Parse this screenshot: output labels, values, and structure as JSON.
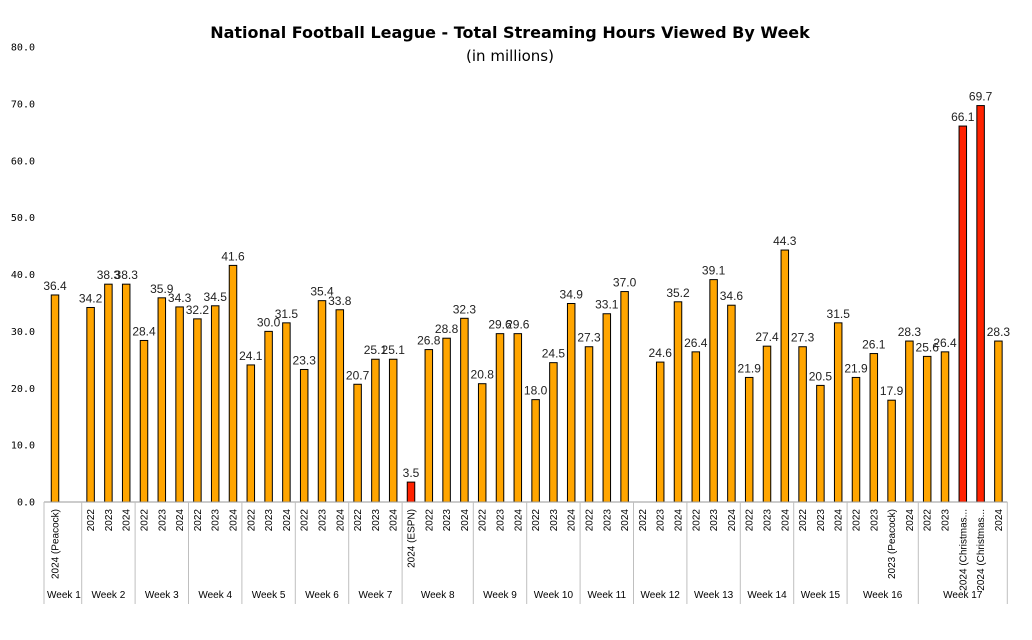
{
  "chart_data": {
    "type": "bar",
    "title": "National Football League - Total Streaming Hours Viewed By Week",
    "subtitle": "(in millions)",
    "ylim": [
      0,
      80
    ],
    "yticks": [
      "0.0",
      "10.0",
      "20.0",
      "30.0",
      "40.0",
      "50.0",
      "60.0",
      "70.0",
      "80.0"
    ],
    "grid": false,
    "colors": {
      "normal": "#FFA500",
      "highlight": "#FF2200",
      "outline": "#000000"
    },
    "groups": [
      {
        "name": "Week 1",
        "bars": [
          {
            "label": "2024 (Peacock)",
            "value": 36.4,
            "value_text": "36.4"
          },
          {
            "label": "",
            "value": null,
            "value_text": ""
          }
        ]
      },
      {
        "name": "Week 2",
        "bars": [
          {
            "label": "2022",
            "value": 34.2,
            "value_text": "34.2"
          },
          {
            "label": "2023",
            "value": 38.3,
            "value_text": "38.3"
          },
          {
            "label": "2024",
            "value": 38.3,
            "value_text": "38.3"
          }
        ]
      },
      {
        "name": "Week 3",
        "bars": [
          {
            "label": "2022",
            "value": 28.4,
            "value_text": "28.4"
          },
          {
            "label": "2023",
            "value": 35.9,
            "value_text": "35.9"
          },
          {
            "label": "2024",
            "value": 34.3,
            "value_text": "34.3"
          }
        ]
      },
      {
        "name": "Week 4",
        "bars": [
          {
            "label": "2022",
            "value": 32.2,
            "value_text": "32.2"
          },
          {
            "label": "2023",
            "value": 34.5,
            "value_text": "34.5"
          },
          {
            "label": "2024",
            "value": 41.6,
            "value_text": "41.6"
          }
        ]
      },
      {
        "name": "Week 5",
        "bars": [
          {
            "label": "2022",
            "value": 24.1,
            "value_text": "24.1"
          },
          {
            "label": "2023",
            "value": 30.0,
            "value_text": "30.0"
          },
          {
            "label": "2024",
            "value": 31.5,
            "value_text": "31.5"
          }
        ]
      },
      {
        "name": "Week 6",
        "bars": [
          {
            "label": "2022",
            "value": 23.3,
            "value_text": "23.3"
          },
          {
            "label": "2023",
            "value": 35.4,
            "value_text": "35.4"
          },
          {
            "label": "2024",
            "value": 33.8,
            "value_text": "33.8"
          }
        ]
      },
      {
        "name": "Week 7",
        "bars": [
          {
            "label": "2022",
            "value": 20.7,
            "value_text": "20.7"
          },
          {
            "label": "2023",
            "value": 25.1,
            "value_text": "25.1"
          },
          {
            "label": "2024",
            "value": 25.1,
            "value_text": "25.1"
          }
        ]
      },
      {
        "name": "Week 8",
        "bars": [
          {
            "label": "2024 (ESPN)",
            "value": 3.5,
            "value_text": "3.5",
            "highlight": true
          },
          {
            "label": "2022",
            "value": 26.8,
            "value_text": "26.8"
          },
          {
            "label": "2023",
            "value": 28.8,
            "value_text": "28.8"
          },
          {
            "label": "2024",
            "value": 32.3,
            "value_text": "32.3"
          }
        ]
      },
      {
        "name": "Week 9",
        "bars": [
          {
            "label": "2022",
            "value": 20.8,
            "value_text": "20.8"
          },
          {
            "label": "2023",
            "value": 29.6,
            "value_text": "29.6"
          },
          {
            "label": "2024",
            "value": 29.6,
            "value_text": "29.6"
          }
        ]
      },
      {
        "name": "Week 10",
        "bars": [
          {
            "label": "2022",
            "value": 18.0,
            "value_text": "18.0"
          },
          {
            "label": "2023",
            "value": 24.5,
            "value_text": "24.5"
          },
          {
            "label": "2024",
            "value": 34.9,
            "value_text": "34.9"
          }
        ]
      },
      {
        "name": "Week 11",
        "bars": [
          {
            "label": "2022",
            "value": 27.3,
            "value_text": "27.3"
          },
          {
            "label": "2023",
            "value": 33.1,
            "value_text": "33.1"
          },
          {
            "label": "2024",
            "value": 37.0,
            "value_text": "37.0"
          }
        ]
      },
      {
        "name": "Week 12",
        "bars": [
          {
            "label": "2022",
            "value": null,
            "value_text": ""
          },
          {
            "label": "2023",
            "value": 24.6,
            "value_text": "24.6"
          },
          {
            "label": "2024",
            "value": 35.2,
            "value_text": "35.2"
          }
        ]
      },
      {
        "name": "Week 13",
        "bars": [
          {
            "label": "2022",
            "value": 26.4,
            "value_text": "26.4"
          },
          {
            "label": "2023",
            "value": 39.1,
            "value_text": "39.1"
          },
          {
            "label": "2024",
            "value": 34.6,
            "value_text": "34.6"
          }
        ]
      },
      {
        "name": "Week 14",
        "bars": [
          {
            "label": "2022",
            "value": 21.9,
            "value_text": "21.9"
          },
          {
            "label": "2023",
            "value": 27.4,
            "value_text": "27.4"
          },
          {
            "label": "2024",
            "value": 44.3,
            "value_text": "44.3"
          }
        ]
      },
      {
        "name": "Week 15",
        "bars": [
          {
            "label": "2022",
            "value": 27.3,
            "value_text": "27.3"
          },
          {
            "label": "2023",
            "value": 20.5,
            "value_text": "20.5"
          },
          {
            "label": "2024",
            "value": 31.5,
            "value_text": "31.5"
          }
        ]
      },
      {
        "name": "Week 16",
        "bars": [
          {
            "label": "2022",
            "value": 21.9,
            "value_text": "21.9"
          },
          {
            "label": "2023",
            "value": 26.1,
            "value_text": "26.1"
          },
          {
            "label": "2023 (Peacock)",
            "value": 17.9,
            "value_text": "17.9"
          },
          {
            "label": "2024",
            "value": 28.3,
            "value_text": "28.3"
          }
        ]
      },
      {
        "name": "Week 17",
        "bars": [
          {
            "label": "2022",
            "value": 25.6,
            "value_text": "25.6"
          },
          {
            "label": "2023",
            "value": 26.4,
            "value_text": "26.4"
          },
          {
            "label": "2024 (Christmas...",
            "value": 66.1,
            "value_text": "66.1",
            "highlight": true
          },
          {
            "label": "2024 (Christmas...",
            "value": 69.7,
            "value_text": "69.7",
            "highlight": true
          },
          {
            "label": "2024",
            "value": 28.3,
            "value_text": "28.3"
          }
        ]
      }
    ]
  }
}
